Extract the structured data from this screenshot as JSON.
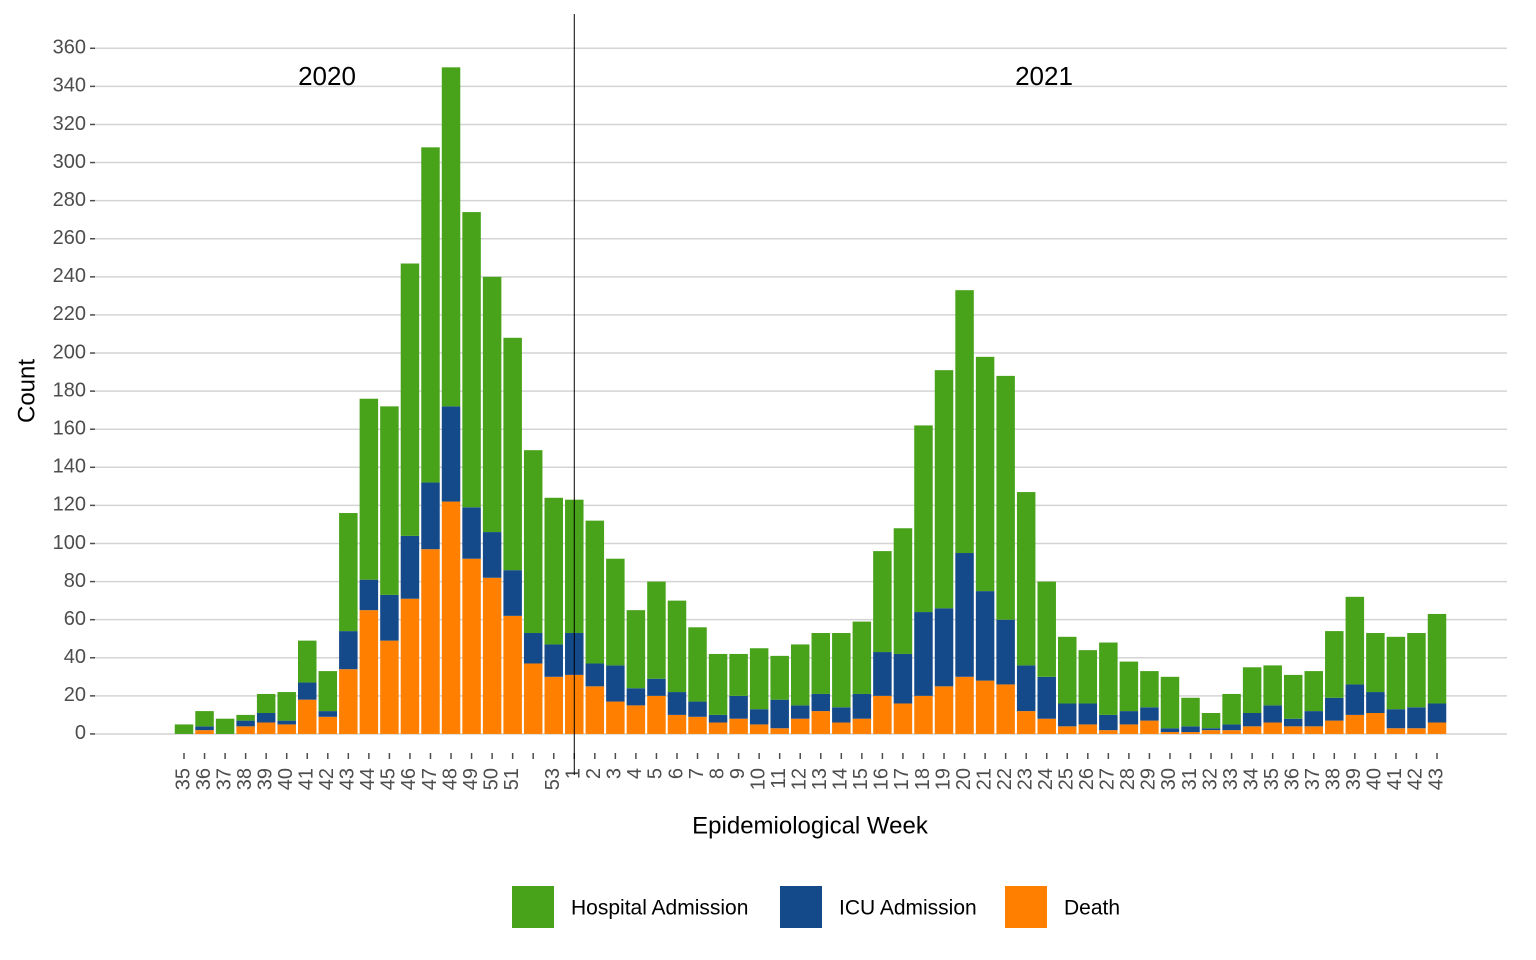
{
  "chart_data": {
    "type": "stacked_bar",
    "xlabel": "Epidemiological Week",
    "ylabel": "Count",
    "annotations": [
      "2020",
      "2021"
    ],
    "categories": [
      "35",
      "36",
      "37",
      "38",
      "39",
      "40",
      "41",
      "42",
      "43",
      "44",
      "45",
      "46",
      "47",
      "48",
      "49",
      "50",
      "51",
      null,
      "53",
      "1",
      "2",
      "3",
      "4",
      "5",
      "6",
      "7",
      "8",
      "9",
      "10",
      "11",
      "12",
      "13",
      "14",
      "15",
      "16",
      "17",
      "18",
      "19",
      "20",
      "21",
      "22",
      "23",
      "24",
      "25",
      "26",
      "27",
      "28",
      "29",
      "30",
      "31",
      "32",
      "33",
      "34",
      "35",
      "36",
      "37",
      "38",
      "39",
      "40",
      "41",
      "42",
      "43"
    ],
    "series": [
      {
        "name": "Hospital Admission",
        "color": "#48a31a",
        "values": [
          5,
          8,
          8,
          3,
          10,
          15,
          22,
          21,
          62,
          95,
          99,
          143,
          176,
          178,
          155,
          134,
          122,
          96,
          77,
          70,
          75,
          56,
          41,
          51,
          48,
          39,
          32,
          22,
          32,
          23,
          32,
          32,
          39,
          38,
          53,
          66,
          98,
          125,
          138,
          123,
          128,
          91,
          50,
          35,
          28,
          38,
          26,
          19,
          27,
          15,
          8,
          16,
          24,
          21,
          23,
          21,
          35,
          46,
          31,
          38,
          39,
          47
        ]
      },
      {
        "name": "ICU Admission",
        "color": "#154a8a",
        "values": [
          0,
          2,
          0,
          3,
          5,
          2,
          9,
          3,
          20,
          16,
          24,
          33,
          35,
          50,
          27,
          24,
          24,
          16,
          17,
          22,
          12,
          19,
          9,
          9,
          12,
          8,
          4,
          12,
          8,
          15,
          7,
          9,
          8,
          13,
          23,
          26,
          44,
          41,
          65,
          47,
          34,
          24,
          22,
          12,
          11,
          8,
          7,
          7,
          2,
          3,
          1,
          3,
          7,
          9,
          4,
          8,
          12,
          16,
          11,
          10,
          11,
          10
        ]
      },
      {
        "name": "Death",
        "color": "#ff8000",
        "values": [
          0,
          2,
          0,
          4,
          6,
          5,
          18,
          9,
          34,
          65,
          49,
          71,
          97,
          122,
          92,
          82,
          62,
          37,
          30,
          31,
          25,
          17,
          15,
          20,
          10,
          9,
          6,
          8,
          5,
          3,
          8,
          12,
          6,
          8,
          20,
          16,
          20,
          25,
          30,
          28,
          26,
          12,
          8,
          4,
          5,
          2,
          5,
          7,
          1,
          1,
          2,
          2,
          4,
          6,
          4,
          4,
          7,
          10,
          11,
          3,
          3,
          6
        ]
      }
    ],
    "ylim": [
      -10,
      378
    ],
    "yticks": [
      0,
      20,
      40,
      60,
      80,
      100,
      120,
      140,
      160,
      180,
      200,
      220,
      240,
      260,
      280,
      300,
      320,
      340,
      360
    ],
    "grid": true,
    "legend": "bottom"
  }
}
